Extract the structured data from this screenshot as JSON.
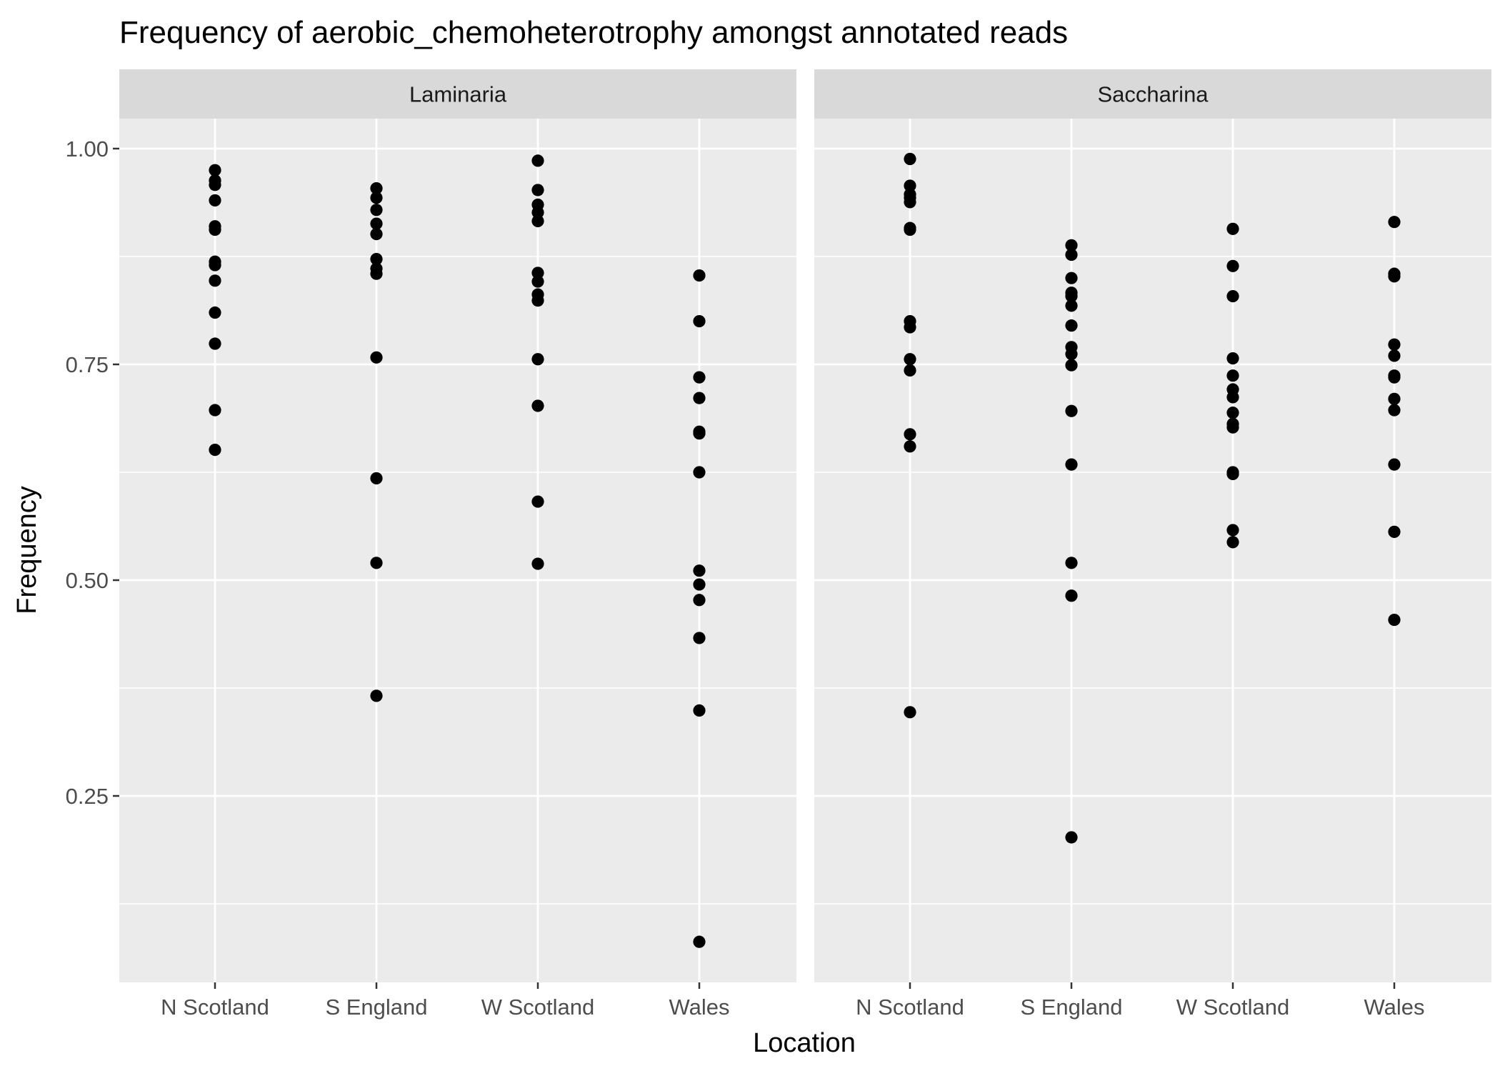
{
  "chart_data": {
    "type": "scatter",
    "title": "Frequency of aerobic_chemoheterotrophy amongst annotated reads",
    "xlabel": "Location",
    "ylabel": "Frequency",
    "categories": [
      "N Scotland",
      "S England",
      "W Scotland",
      "Wales"
    ],
    "y_ticks": [
      0.25,
      0.5,
      0.75,
      1.0
    ],
    "y_tick_labels": [
      "0.25",
      "0.50",
      "0.75",
      "1.00"
    ],
    "ylim": [
      0.04,
      1.035
    ],
    "grid": true,
    "panel_background": "#ebebeb",
    "strip_background": "#d9d9d9",
    "point_color": "#000000",
    "facets": [
      {
        "name": "Laminaria",
        "points": {
          "N Scotland": [
            0.975,
            0.963,
            0.958,
            0.94,
            0.91,
            0.906,
            0.869,
            0.865,
            0.847,
            0.81,
            0.774,
            0.697,
            0.651
          ],
          "S England": [
            0.954,
            0.943,
            0.929,
            0.913,
            0.901,
            0.872,
            0.861,
            0.855,
            0.758,
            0.618,
            0.52,
            0.366
          ],
          "W Scotland": [
            0.986,
            0.952,
            0.935,
            0.926,
            0.916,
            0.856,
            0.846,
            0.831,
            0.824,
            0.756,
            0.702,
            0.591,
            0.519
          ],
          "Wales": [
            0.853,
            0.8,
            0.735,
            0.711,
            0.672,
            0.67,
            0.625,
            0.511,
            0.495,
            0.477,
            0.433,
            0.349,
            0.081
          ]
        }
      },
      {
        "name": "Saccharina",
        "points": {
          "N Scotland": [
            0.988,
            0.957,
            0.947,
            0.943,
            0.938,
            0.908,
            0.906,
            0.8,
            0.793,
            0.756,
            0.743,
            0.669,
            0.655,
            0.347
          ],
          "S England": [
            0.888,
            0.877,
            0.85,
            0.833,
            0.829,
            0.818,
            0.795,
            0.77,
            0.762,
            0.749,
            0.696,
            0.634,
            0.52,
            0.482,
            0.202
          ],
          "W Scotland": [
            0.907,
            0.864,
            0.829,
            0.757,
            0.737,
            0.721,
            0.712,
            0.694,
            0.681,
            0.677,
            0.625,
            0.623,
            0.558,
            0.544
          ],
          "Wales": [
            0.915,
            0.855,
            0.852,
            0.773,
            0.76,
            0.737,
            0.735,
            0.71,
            0.697,
            0.634,
            0.556,
            0.454
          ]
        }
      }
    ]
  }
}
